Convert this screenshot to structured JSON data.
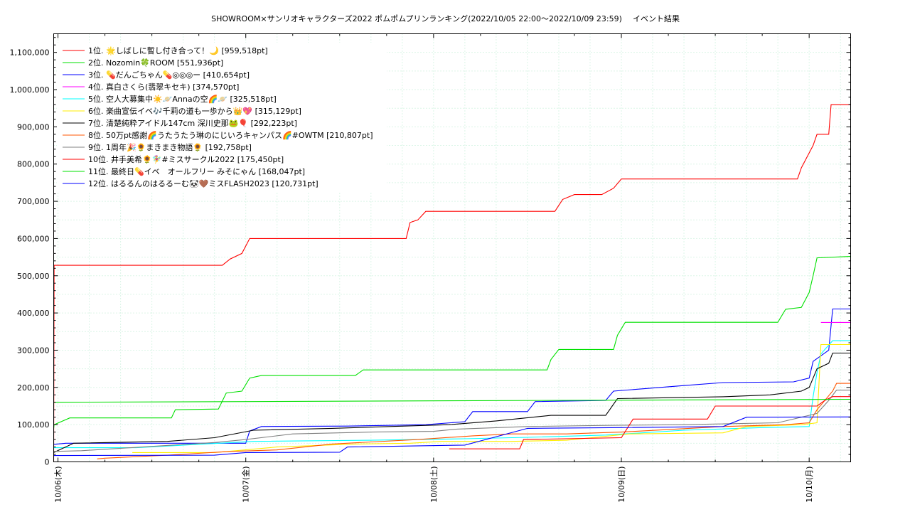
{
  "chart_data": {
    "type": "line",
    "title": "SHOWROOM×サンリオキャラクターズ2022 ポムポムプリンランキング(2022/10/05 22:00〜2022/10/09 23:59)",
    "subtitle": "イベント結果",
    "xlabel": "",
    "ylabel": "",
    "ylim": [
      0,
      1150000
    ],
    "xlim_hours": [
      -0.55,
      101.3
    ],
    "x_ticks": [
      "10/06(木)",
      "10/07(金)",
      "10/08(土)",
      "10/09(日)",
      "10/10(月)"
    ],
    "y_ticks": [
      "0",
      "100,000",
      "200,000",
      "300,000",
      "400,000",
      "500,000",
      "600,000",
      "700,000",
      "800,000",
      "900,000",
      "1,000,000",
      "1,100,000"
    ],
    "y_tick_values": [
      0,
      100000,
      200000,
      300000,
      400000,
      500000,
      600000,
      700000,
      800000,
      900000,
      1000000,
      1100000
    ],
    "grid": true,
    "legend_position": "top-left",
    "x_unit_note": "hours since 2022/10/06 00:00",
    "series": [
      {
        "name": "1位. 🌟しばしに暫し付き合って！🌙 [959,518pt]",
        "color": "#ff0000",
        "points": [
          [
            -0.55,
            0
          ],
          [
            -0.5,
            528000
          ],
          [
            21,
            528000
          ],
          [
            22,
            545000
          ],
          [
            23.5,
            560000
          ],
          [
            24.5,
            600000
          ],
          [
            44.5,
            600000
          ],
          [
            45,
            643000
          ],
          [
            46,
            650000
          ],
          [
            47,
            673000
          ],
          [
            63.5,
            673000
          ],
          [
            64.5,
            705000
          ],
          [
            66,
            718000
          ],
          [
            69.5,
            718000
          ],
          [
            71,
            735000
          ],
          [
            72,
            760000
          ],
          [
            94.5,
            760000
          ],
          [
            95,
            790000
          ],
          [
            96,
            830000
          ],
          [
            96.5,
            850000
          ],
          [
            97,
            880000
          ],
          [
            98.5,
            880000
          ],
          [
            98.8,
            959518
          ],
          [
            101.3,
            959518
          ]
        ]
      },
      {
        "name": "2位. Nozomin🍀ROOM [551,936pt]",
        "color": "#00e000",
        "points": [
          [
            -0.55,
            90000
          ],
          [
            -0.5,
            100000
          ],
          [
            1.5,
            118000
          ],
          [
            14.5,
            118000
          ],
          [
            15,
            140000
          ],
          [
            20.5,
            142000
          ],
          [
            21.5,
            185000
          ],
          [
            23.5,
            190000
          ],
          [
            24.5,
            225000
          ],
          [
            26,
            232000
          ],
          [
            38,
            232000
          ],
          [
            39,
            247000
          ],
          [
            62.5,
            247000
          ],
          [
            63,
            275000
          ],
          [
            64,
            302000
          ],
          [
            71,
            302000
          ],
          [
            71.5,
            340000
          ],
          [
            72.5,
            375000
          ],
          [
            92,
            375000
          ],
          [
            93,
            410000
          ],
          [
            95,
            415000
          ],
          [
            96,
            455000
          ],
          [
            96.5,
            500000
          ],
          [
            97,
            548000
          ],
          [
            101.3,
            551936
          ]
        ]
      },
      {
        "name": "3位. 💊だんごちゃん💊◎◎◎ー [410,654pt]",
        "color": "#0000ff",
        "points": [
          [
            -0.55,
            47000
          ],
          [
            1,
            50000
          ],
          [
            24,
            50000
          ],
          [
            24.5,
            83000
          ],
          [
            26,
            95000
          ],
          [
            37,
            96000
          ],
          [
            42,
            98000
          ],
          [
            47,
            100000
          ],
          [
            52,
            108000
          ],
          [
            53,
            135000
          ],
          [
            60,
            135000
          ],
          [
            61,
            162000
          ],
          [
            70,
            165000
          ],
          [
            71,
            190000
          ],
          [
            80,
            205000
          ],
          [
            85,
            213000
          ],
          [
            94,
            215000
          ],
          [
            96,
            225000
          ],
          [
            96.5,
            270000
          ],
          [
            97.5,
            285000
          ],
          [
            98.5,
            300000
          ],
          [
            99,
            410654
          ],
          [
            101.3,
            410654
          ]
        ]
      },
      {
        "name": "4位. 真白さくら(翡翠キセキ) [374,570pt]",
        "color": "#ff00ff",
        "points": [
          [
            97.5,
            374570
          ],
          [
            101.3,
            374570
          ]
        ]
      },
      {
        "name": "5位. 空人大募集中☀️🪐Annaの空🌈🪐 [325,518pt]",
        "color": "#00ffff",
        "points": [
          [
            -0.55,
            38000
          ],
          [
            10,
            38000
          ],
          [
            25,
            55000
          ],
          [
            40,
            58000
          ],
          [
            52,
            62000
          ],
          [
            60,
            66000
          ],
          [
            70,
            72000
          ],
          [
            80,
            85000
          ],
          [
            90,
            92000
          ],
          [
            96,
            95000
          ],
          [
            96.5,
            175000
          ],
          [
            97,
            240000
          ],
          [
            97.5,
            290000
          ],
          [
            99,
            325518
          ],
          [
            101.3,
            325518
          ]
        ]
      },
      {
        "name": "6位. 楽曲宣伝イベ🎶千莉の道も一歩から👑💖 [315,129pt]",
        "color": "#ffee00",
        "points": [
          [
            9.5,
            25000
          ],
          [
            20,
            25000
          ],
          [
            28,
            40000
          ],
          [
            38,
            48000
          ],
          [
            45,
            50000
          ],
          [
            49,
            55000
          ],
          [
            58,
            55000
          ],
          [
            65,
            58000
          ],
          [
            73,
            75000
          ],
          [
            85,
            78000
          ],
          [
            88,
            95000
          ],
          [
            95,
            100000
          ],
          [
            97,
            105000
          ],
          [
            97.5,
            315129
          ],
          [
            101.3,
            315129
          ]
        ]
      },
      {
        "name": "7位. 清楚純粋アイドル147cm 深川史那🐸🎈 [292,223pt]",
        "color": "#000000",
        "points": [
          [
            -0.55,
            25000
          ],
          [
            2,
            50000
          ],
          [
            14,
            55000
          ],
          [
            20,
            65000
          ],
          [
            25,
            85000
          ],
          [
            35,
            90000
          ],
          [
            50,
            100000
          ],
          [
            56,
            110000
          ],
          [
            63,
            125000
          ],
          [
            70,
            125000
          ],
          [
            71.5,
            170000
          ],
          [
            85,
            175000
          ],
          [
            91,
            180000
          ],
          [
            95,
            190000
          ],
          [
            96,
            200000
          ],
          [
            97,
            250000
          ],
          [
            98.5,
            265000
          ],
          [
            99,
            292223
          ],
          [
            101.3,
            292223
          ]
        ]
      },
      {
        "name": "8位. 50万pt感謝🌈うたうたう琳のにじいろキャンパス🌈#OWTM [210,807pt]",
        "color": "#ff5500",
        "points": [
          [
            5,
            8000
          ],
          [
            6,
            10000
          ],
          [
            14,
            18000
          ],
          [
            22,
            28000
          ],
          [
            28,
            32000
          ],
          [
            35,
            48000
          ],
          [
            46,
            60000
          ],
          [
            53,
            70000
          ],
          [
            58,
            75000
          ],
          [
            65,
            75000
          ],
          [
            72,
            80000
          ],
          [
            85,
            95000
          ],
          [
            93,
            100000
          ],
          [
            96,
            105000
          ],
          [
            97,
            140000
          ],
          [
            99,
            190000
          ],
          [
            99.5,
            210807
          ],
          [
            101.3,
            210807
          ]
        ]
      },
      {
        "name": "9位. 1周年🎉🌻まきまき物語🌻 [192,758pt]",
        "color": "#808080",
        "points": [
          [
            -0.55,
            28000
          ],
          [
            3,
            30000
          ],
          [
            20,
            52000
          ],
          [
            24,
            60000
          ],
          [
            30,
            75000
          ],
          [
            40,
            80000
          ],
          [
            48,
            82000
          ],
          [
            51,
            88000
          ],
          [
            60,
            95000
          ],
          [
            70,
            98000
          ],
          [
            80,
            100000
          ],
          [
            92,
            105000
          ],
          [
            97,
            130000
          ],
          [
            98.5,
            165000
          ],
          [
            99.5,
            192758
          ],
          [
            101.3,
            192758
          ]
        ]
      },
      {
        "name": "10位. 井手美希🌻🧚‍♀️#ミスサークル2022 [175,450pt]",
        "color": "#ff0000",
        "points": [
          [
            50,
            35000
          ],
          [
            59,
            35000
          ],
          [
            59.5,
            60000
          ],
          [
            72,
            65000
          ],
          [
            73.5,
            115000
          ],
          [
            83,
            115000
          ],
          [
            84,
            150000
          ],
          [
            97,
            150000
          ],
          [
            98,
            165000
          ],
          [
            99,
            175450
          ],
          [
            101.3,
            175450
          ]
        ]
      },
      {
        "name": "11位. 最終日💊イベ　オールフリー みそにゃん [168,047pt]",
        "color": "#00e000",
        "points": [
          [
            -0.55,
            160000
          ],
          [
            101.3,
            168047
          ]
        ]
      },
      {
        "name": "12位. はるるんのはるるーむ🐼🤎ミスFLASH2023 [120,731pt]",
        "color": "#0000ff",
        "points": [
          [
            -0.55,
            17000
          ],
          [
            20,
            18000
          ],
          [
            24,
            25000
          ],
          [
            36,
            26000
          ],
          [
            37,
            40000
          ],
          [
            52,
            45000
          ],
          [
            60,
            90000
          ],
          [
            72,
            92000
          ],
          [
            85,
            95000
          ],
          [
            88,
            120000
          ],
          [
            101.3,
            120731
          ]
        ]
      }
    ]
  }
}
